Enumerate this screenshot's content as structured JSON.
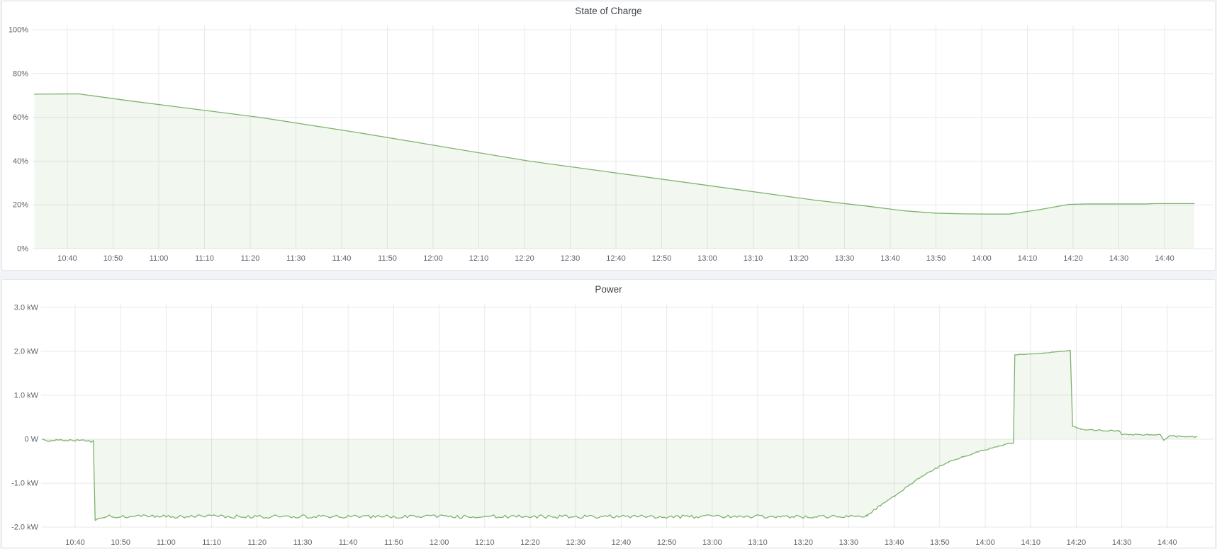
{
  "page": {
    "background": "#f1f3f7",
    "panel_background": "#ffffff",
    "panel_border": "#e4e7ec"
  },
  "style": {
    "series_color": "#7eb26d",
    "series_fill": "rgba(126,178,109,0.10)",
    "grid_color": "#e9e9e9",
    "axis_text_color": "#5d6269",
    "title_color": "#414549"
  },
  "chart_data": [
    {
      "id": "state_of_charge",
      "type": "area",
      "title": "State of Charge",
      "xlabel": "",
      "ylabel": "",
      "x_unit": "time of day (HH:MM), minutes measured from 10:40",
      "y_unit": "percent",
      "x_domain": [
        -7.2,
        246.5
      ],
      "y_domain": [
        0,
        100
      ],
      "baseline": 0,
      "grid": true,
      "legend_position": "none",
      "noise_seed": 42,
      "y_ticks": [
        {
          "v": 0,
          "label": "0%"
        },
        {
          "v": 20,
          "label": "20%"
        },
        {
          "v": 40,
          "label": "40%"
        },
        {
          "v": 60,
          "label": "60%"
        },
        {
          "v": 80,
          "label": "80%"
        },
        {
          "v": 100,
          "label": "100%"
        }
      ],
      "x_ticks": [
        {
          "t": 0,
          "label": "10:40"
        },
        {
          "t": 10,
          "label": "10:50"
        },
        {
          "t": 20,
          "label": "11:00"
        },
        {
          "t": 30,
          "label": "11:10"
        },
        {
          "t": 40,
          "label": "11:20"
        },
        {
          "t": 50,
          "label": "11:30"
        },
        {
          "t": 60,
          "label": "11:40"
        },
        {
          "t": 70,
          "label": "11:50"
        },
        {
          "t": 80,
          "label": "12:00"
        },
        {
          "t": 90,
          "label": "12:10"
        },
        {
          "t": 100,
          "label": "12:20"
        },
        {
          "t": 110,
          "label": "12:30"
        },
        {
          "t": 120,
          "label": "12:40"
        },
        {
          "t": 130,
          "label": "12:50"
        },
        {
          "t": 140,
          "label": "13:00"
        },
        {
          "t": 150,
          "label": "13:10"
        },
        {
          "t": 160,
          "label": "13:20"
        },
        {
          "t": 170,
          "label": "13:30"
        },
        {
          "t": 180,
          "label": "13:40"
        },
        {
          "t": 190,
          "label": "13:50"
        },
        {
          "t": 200,
          "label": "14:00"
        },
        {
          "t": 210,
          "label": "14:10"
        },
        {
          "t": 220,
          "label": "14:20"
        },
        {
          "t": 230,
          "label": "14:30"
        },
        {
          "t": 240,
          "label": "14:40"
        }
      ],
      "points": [
        [
          -7.2,
          70.6
        ],
        [
          2.5,
          70.7
        ],
        [
          13,
          67.7
        ],
        [
          42,
          60.0
        ],
        [
          63,
          53.2
        ],
        [
          101,
          40.0
        ],
        [
          120,
          34.6
        ],
        [
          140,
          28.9
        ],
        [
          163,
          22.3
        ],
        [
          175,
          19.4
        ],
        [
          183,
          17.3
        ],
        [
          190,
          16.2
        ],
        [
          196,
          15.9
        ],
        [
          201,
          15.8
        ],
        [
          206,
          15.8
        ],
        [
          212,
          17.6
        ],
        [
          219,
          20.2
        ],
        [
          223,
          20.4
        ],
        [
          236,
          20.4
        ],
        [
          238,
          20.6
        ],
        [
          246.5,
          20.6
        ]
      ]
    },
    {
      "id": "power",
      "type": "area",
      "title": "Power",
      "xlabel": "",
      "ylabel": "",
      "x_unit": "time of day (HH:MM), minutes measured from 10:40",
      "y_unit": "kW",
      "x_domain": [
        -7.2,
        246.5
      ],
      "y_domain": [
        -2.03,
        3.06
      ],
      "baseline": 0,
      "grid": true,
      "legend_position": "none",
      "noise_seed": 1337,
      "y_ticks": [
        {
          "v": 3,
          "label": "3.0 kW"
        },
        {
          "v": 2,
          "label": "2.0 kW"
        },
        {
          "v": 1,
          "label": "1.0 kW"
        },
        {
          "v": 0,
          "label": "0 W"
        },
        {
          "v": -1,
          "label": "-1.0 kW"
        },
        {
          "v": -2,
          "label": "-2.0 kW"
        }
      ],
      "x_ticks": [
        {
          "t": 0,
          "label": "10:40"
        },
        {
          "t": 10,
          "label": "10:50"
        },
        {
          "t": 20,
          "label": "11:00"
        },
        {
          "t": 30,
          "label": "11:10"
        },
        {
          "t": 40,
          "label": "11:20"
        },
        {
          "t": 50,
          "label": "11:30"
        },
        {
          "t": 60,
          "label": "11:40"
        },
        {
          "t": 70,
          "label": "11:50"
        },
        {
          "t": 80,
          "label": "12:00"
        },
        {
          "t": 90,
          "label": "12:10"
        },
        {
          "t": 100,
          "label": "12:20"
        },
        {
          "t": 110,
          "label": "12:30"
        },
        {
          "t": 120,
          "label": "12:40"
        },
        {
          "t": 130,
          "label": "12:50"
        },
        {
          "t": 140,
          "label": "13:00"
        },
        {
          "t": 150,
          "label": "13:10"
        },
        {
          "t": 160,
          "label": "13:20"
        },
        {
          "t": 170,
          "label": "13:30"
        },
        {
          "t": 180,
          "label": "13:40"
        },
        {
          "t": 190,
          "label": "13:50"
        },
        {
          "t": 200,
          "label": "14:00"
        },
        {
          "t": 210,
          "label": "14:10"
        },
        {
          "t": 220,
          "label": "14:20"
        },
        {
          "t": 230,
          "label": "14:30"
        },
        {
          "t": 240,
          "label": "14:40"
        }
      ],
      "segments": [
        {
          "t0": -7.2,
          "v0": -0.02,
          "t1": 4.0,
          "v1": -0.03,
          "noise": 0.045
        },
        {
          "t0": 4.0,
          "v0": -0.03,
          "t1": 4.4,
          "v1": -1.84,
          "noise": 0
        },
        {
          "t0": 4.4,
          "v0": -1.84,
          "t1": 6.5,
          "v1": -1.77,
          "noise": 0.01
        },
        {
          "t0": 6.5,
          "v0": -1.76,
          "t1": 174,
          "v1": -1.76,
          "noise": 0.04
        },
        {
          "t0": 174,
          "v0": -1.74,
          "t1": 177,
          "v1": -1.5,
          "noise": 0.02
        },
        {
          "t0": 177,
          "v0": -1.5,
          "t1": 180,
          "v1": -1.3,
          "noise": 0.02
        },
        {
          "t0": 180,
          "v0": -1.3,
          "t1": 183,
          "v1": -1.06,
          "noise": 0.02
        },
        {
          "t0": 183,
          "v0": -1.06,
          "t1": 186,
          "v1": -0.85,
          "noise": 0.02
        },
        {
          "t0": 186,
          "v0": -0.85,
          "t1": 189,
          "v1": -0.67,
          "noise": 0.02
        },
        {
          "t0": 189,
          "v0": -0.67,
          "t1": 192,
          "v1": -0.52,
          "noise": 0.02
        },
        {
          "t0": 192,
          "v0": -0.52,
          "t1": 195,
          "v1": -0.4,
          "noise": 0.02
        },
        {
          "t0": 195,
          "v0": -0.4,
          "t1": 198,
          "v1": -0.3,
          "noise": 0.02
        },
        {
          "t0": 198,
          "v0": -0.3,
          "t1": 201,
          "v1": -0.21,
          "noise": 0.02
        },
        {
          "t0": 201,
          "v0": -0.21,
          "t1": 204,
          "v1": -0.14,
          "noise": 0.015
        },
        {
          "t0": 204,
          "v0": -0.12,
          "t1": 206.2,
          "v1": -0.09,
          "noise": 0.012
        },
        {
          "t0": 206.2,
          "v0": -0.09,
          "t1": 206.5,
          "v1": 1.92,
          "noise": 0
        },
        {
          "t0": 206.5,
          "v0": 1.92,
          "t1": 212,
          "v1": 1.95,
          "noise": 0.006
        },
        {
          "t0": 212,
          "v0": 1.95,
          "t1": 218.7,
          "v1": 2.02,
          "noise": 0.006
        },
        {
          "t0": 218.7,
          "v0": 2.02,
          "t1": 219.2,
          "v1": 0.3,
          "noise": 0
        },
        {
          "t0": 219.2,
          "v0": 0.3,
          "t1": 221,
          "v1": 0.22,
          "noise": 0.03
        },
        {
          "t0": 221,
          "v0": 0.21,
          "t1": 229.5,
          "v1": 0.19,
          "noise": 0.018
        },
        {
          "t0": 229.5,
          "v0": 0.19,
          "t1": 230,
          "v1": 0.11,
          "noise": 0
        },
        {
          "t0": 230,
          "v0": 0.11,
          "t1": 238.5,
          "v1": 0.1,
          "noise": 0.015
        },
        {
          "t0": 238.5,
          "v0": 0.1,
          "t1": 239.2,
          "v1": -0.02,
          "noise": 0
        },
        {
          "t0": 239.2,
          "v0": -0.02,
          "t1": 240.5,
          "v1": 0.07,
          "noise": 0.01
        },
        {
          "t0": 240.5,
          "v0": 0.07,
          "t1": 246.5,
          "v1": 0.05,
          "noise": 0.022
        }
      ]
    }
  ]
}
